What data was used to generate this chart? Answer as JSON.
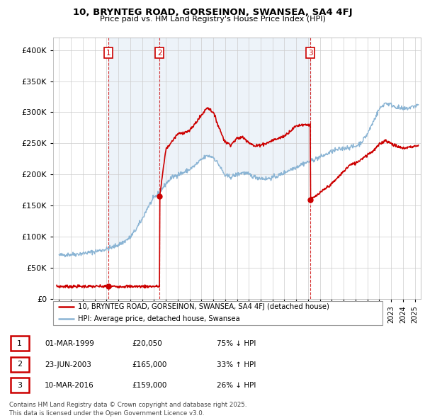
{
  "title_line1": "10, BRYNTEG ROAD, GORSEINON, SWANSEA, SA4 4FJ",
  "title_line2": "Price paid vs. HM Land Registry's House Price Index (HPI)",
  "background_color": "#ffffff",
  "grid_color": "#cccccc",
  "hpi_color": "#8ab4d4",
  "price_color": "#cc0000",
  "sale_dates_num": [
    1999.17,
    2003.48,
    2016.19
  ],
  "sale_prices": [
    20050,
    165000,
    159000
  ],
  "sale_labels": [
    "1",
    "2",
    "3"
  ],
  "legend_price_label": "10, BRYNTEG ROAD, GORSEINON, SWANSEA, SA4 4FJ (detached house)",
  "legend_hpi_label": "HPI: Average price, detached house, Swansea",
  "table_data": [
    {
      "num": "1",
      "date": "01-MAR-1999",
      "price": "£20,050",
      "hpi": "75% ↓ HPI"
    },
    {
      "num": "2",
      "date": "23-JUN-2003",
      "price": "£165,000",
      "hpi": "33% ↑ HPI"
    },
    {
      "num": "3",
      "date": "10-MAR-2016",
      "price": "£159,000",
      "hpi": "26% ↓ HPI"
    }
  ],
  "footer": "Contains HM Land Registry data © Crown copyright and database right 2025.\nThis data is licensed under the Open Government Licence v3.0.",
  "ylim": [
    0,
    420000
  ],
  "yticks": [
    0,
    50000,
    100000,
    150000,
    200000,
    250000,
    300000,
    350000,
    400000
  ],
  "xlim": [
    1994.5,
    2025.5
  ],
  "shade_color": "#dce9f5"
}
